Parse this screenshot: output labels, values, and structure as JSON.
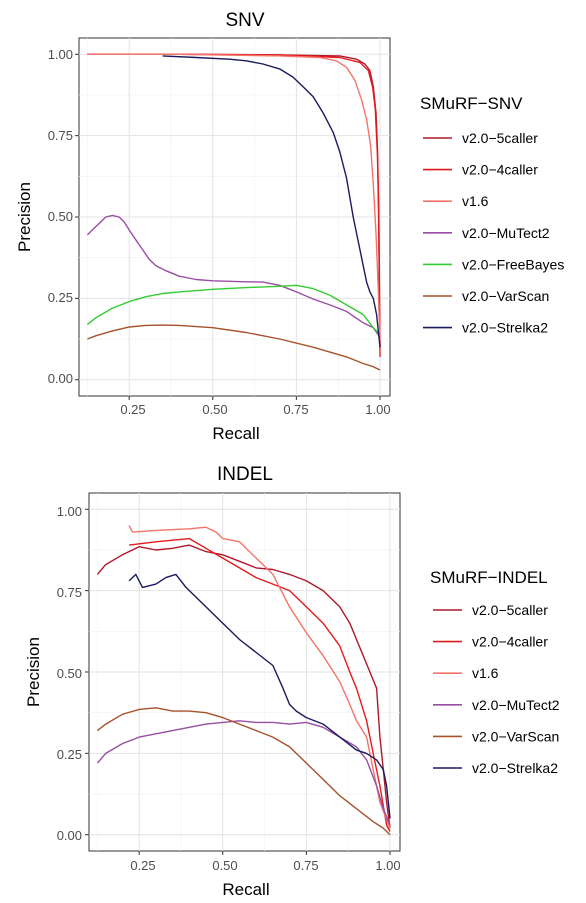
{
  "chart_data": [
    {
      "type": "line",
      "title": "SNV",
      "xlabel": "Recall",
      "ylabel": "Precision",
      "xlim": [
        0.1,
        1.03
      ],
      "ylim": [
        -0.05,
        1.05
      ],
      "xticks": [
        "0.25",
        "0.50",
        "0.75",
        "1.00"
      ],
      "yticks": [
        "0.00",
        "0.25",
        "0.50",
        "0.75",
        "1.00"
      ],
      "grid": true,
      "legend_title": "SMuRF−SNV",
      "legend_position": "right",
      "series": [
        {
          "name": "v2.0−5caller",
          "color": "#b2182b",
          "points": [
            [
              0.125,
              1.0
            ],
            [
              0.4,
              1.0
            ],
            [
              0.7,
              0.998
            ],
            [
              0.88,
              0.995
            ],
            [
              0.93,
              0.985
            ],
            [
              0.955,
              0.97
            ],
            [
              0.97,
              0.95
            ],
            [
              0.98,
              0.9
            ],
            [
              0.988,
              0.82
            ],
            [
              0.993,
              0.7
            ],
            [
              0.996,
              0.5
            ],
            [
              0.998,
              0.3
            ],
            [
              1.0,
              0.1
            ]
          ]
        },
        {
          "name": "v2.0−4caller",
          "color": "#e41a1c",
          "points": [
            [
              0.125,
              1.0
            ],
            [
              0.4,
              1.0
            ],
            [
              0.7,
              0.998
            ],
            [
              0.88,
              0.99
            ],
            [
              0.94,
              0.975
            ],
            [
              0.965,
              0.95
            ],
            [
              0.978,
              0.9
            ],
            [
              0.986,
              0.83
            ],
            [
              0.992,
              0.7
            ],
            [
              0.996,
              0.55
            ],
            [
              0.998,
              0.35
            ],
            [
              0.999,
              0.2
            ],
            [
              1.0,
              0.07
            ]
          ]
        },
        {
          "name": "v1.6",
          "color": "#f4736b",
          "points": [
            [
              0.125,
              1.0
            ],
            [
              0.4,
              1.0
            ],
            [
              0.7,
              0.995
            ],
            [
              0.82,
              0.99
            ],
            [
              0.87,
              0.98
            ],
            [
              0.9,
              0.96
            ],
            [
              0.925,
              0.92
            ],
            [
              0.945,
              0.86
            ],
            [
              0.96,
              0.8
            ],
            [
              0.972,
              0.72
            ],
            [
              0.98,
              0.6
            ],
            [
              0.988,
              0.45
            ],
            [
              0.994,
              0.3
            ],
            [
              1.0,
              0.12
            ]
          ]
        },
        {
          "name": "v2.0−MuTect2",
          "color": "#984ea3",
          "points": [
            [
              0.125,
              0.445
            ],
            [
              0.15,
              0.47
            ],
            [
              0.18,
              0.5
            ],
            [
              0.2,
              0.505
            ],
            [
              0.22,
              0.5
            ],
            [
              0.235,
              0.485
            ],
            [
              0.25,
              0.46
            ],
            [
              0.27,
              0.43
            ],
            [
              0.29,
              0.4
            ],
            [
              0.31,
              0.37
            ],
            [
              0.33,
              0.35
            ],
            [
              0.36,
              0.335
            ],
            [
              0.4,
              0.318
            ],
            [
              0.45,
              0.308
            ],
            [
              0.5,
              0.304
            ],
            [
              0.6,
              0.301
            ],
            [
              0.65,
              0.3
            ],
            [
              0.7,
              0.29
            ],
            [
              0.75,
              0.27
            ],
            [
              0.8,
              0.248
            ],
            [
              0.85,
              0.23
            ],
            [
              0.9,
              0.21
            ],
            [
              0.95,
              0.175
            ],
            [
              0.98,
              0.16
            ],
            [
              1.0,
              0.13
            ]
          ]
        },
        {
          "name": "v2.0−FreeBayes",
          "color": "#33cc33",
          "points": [
            [
              0.125,
              0.17
            ],
            [
              0.15,
              0.19
            ],
            [
              0.2,
              0.22
            ],
            [
              0.25,
              0.24
            ],
            [
              0.3,
              0.255
            ],
            [
              0.35,
              0.265
            ],
            [
              0.4,
              0.27
            ],
            [
              0.5,
              0.278
            ],
            [
              0.6,
              0.283
            ],
            [
              0.7,
              0.287
            ],
            [
              0.75,
              0.29
            ],
            [
              0.8,
              0.28
            ],
            [
              0.85,
              0.26
            ],
            [
              0.9,
              0.23
            ],
            [
              0.95,
              0.2
            ],
            [
              0.98,
              0.16
            ],
            [
              1.0,
              0.14
            ]
          ]
        },
        {
          "name": "v2.0−VarScan",
          "color": "#a6522b",
          "points": [
            [
              0.125,
              0.125
            ],
            [
              0.15,
              0.135
            ],
            [
              0.2,
              0.15
            ],
            [
              0.25,
              0.162
            ],
            [
              0.3,
              0.167
            ],
            [
              0.35,
              0.168
            ],
            [
              0.4,
              0.167
            ],
            [
              0.5,
              0.16
            ],
            [
              0.6,
              0.145
            ],
            [
              0.7,
              0.125
            ],
            [
              0.8,
              0.1
            ],
            [
              0.85,
              0.085
            ],
            [
              0.9,
              0.07
            ],
            [
              0.95,
              0.05
            ],
            [
              0.98,
              0.04
            ],
            [
              1.0,
              0.03
            ]
          ]
        },
        {
          "name": "v2.0−Strelka2",
          "color": "#1a1a5e",
          "points": [
            [
              0.35,
              0.995
            ],
            [
              0.45,
              0.99
            ],
            [
              0.55,
              0.985
            ],
            [
              0.6,
              0.98
            ],
            [
              0.65,
              0.97
            ],
            [
              0.7,
              0.955
            ],
            [
              0.74,
              0.93
            ],
            [
              0.77,
              0.9
            ],
            [
              0.8,
              0.87
            ],
            [
              0.83,
              0.82
            ],
            [
              0.86,
              0.76
            ],
            [
              0.88,
              0.7
            ],
            [
              0.9,
              0.62
            ],
            [
              0.92,
              0.5
            ],
            [
              0.94,
              0.4
            ],
            [
              0.96,
              0.3
            ],
            [
              0.97,
              0.27
            ],
            [
              0.98,
              0.25
            ],
            [
              0.99,
              0.2
            ],
            [
              1.0,
              0.1
            ]
          ]
        }
      ]
    },
    {
      "type": "line",
      "title": "INDEL",
      "xlabel": "Recall",
      "ylabel": "Precision",
      "xlim": [
        0.1,
        1.03
      ],
      "ylim": [
        -0.05,
        1.05
      ],
      "xticks": [
        "0.25",
        "0.50",
        "0.75",
        "1.00"
      ],
      "yticks": [
        "0.00",
        "0.25",
        "0.50",
        "0.75",
        "1.00"
      ],
      "grid": true,
      "legend_title": "SMuRF−INDEL",
      "legend_position": "right",
      "series": [
        {
          "name": "v2.0−5caller",
          "color": "#b2182b",
          "points": [
            [
              0.125,
              0.8
            ],
            [
              0.15,
              0.83
            ],
            [
              0.2,
              0.86
            ],
            [
              0.25,
              0.885
            ],
            [
              0.3,
              0.875
            ],
            [
              0.35,
              0.88
            ],
            [
              0.4,
              0.89
            ],
            [
              0.45,
              0.87
            ],
            [
              0.5,
              0.86
            ],
            [
              0.55,
              0.84
            ],
            [
              0.6,
              0.82
            ],
            [
              0.65,
              0.815
            ],
            [
              0.7,
              0.8
            ],
            [
              0.75,
              0.78
            ],
            [
              0.8,
              0.75
            ],
            [
              0.85,
              0.7
            ],
            [
              0.88,
              0.65
            ],
            [
              0.9,
              0.6
            ],
            [
              0.92,
              0.55
            ],
            [
              0.94,
              0.5
            ],
            [
              0.96,
              0.45
            ],
            [
              0.97,
              0.3
            ],
            [
              0.98,
              0.2
            ],
            [
              0.99,
              0.1
            ],
            [
              1.0,
              0.02
            ]
          ]
        },
        {
          "name": "v2.0−4caller",
          "color": "#e41a1c",
          "points": [
            [
              0.22,
              0.89
            ],
            [
              0.3,
              0.9
            ],
            [
              0.4,
              0.91
            ],
            [
              0.45,
              0.88
            ],
            [
              0.5,
              0.85
            ],
            [
              0.55,
              0.82
            ],
            [
              0.6,
              0.79
            ],
            [
              0.65,
              0.77
            ],
            [
              0.7,
              0.75
            ],
            [
              0.75,
              0.7
            ],
            [
              0.8,
              0.65
            ],
            [
              0.85,
              0.58
            ],
            [
              0.88,
              0.5
            ],
            [
              0.9,
              0.45
            ],
            [
              0.93,
              0.35
            ],
            [
              0.95,
              0.25
            ],
            [
              0.97,
              0.15
            ],
            [
              0.99,
              0.03
            ],
            [
              1.0,
              0.01
            ]
          ]
        },
        {
          "name": "v1.6",
          "color": "#f4736b",
          "points": [
            [
              0.22,
              0.95
            ],
            [
              0.23,
              0.93
            ],
            [
              0.3,
              0.935
            ],
            [
              0.4,
              0.94
            ],
            [
              0.45,
              0.945
            ],
            [
              0.48,
              0.93
            ],
            [
              0.5,
              0.91
            ],
            [
              0.55,
              0.9
            ],
            [
              0.6,
              0.85
            ],
            [
              0.65,
              0.8
            ],
            [
              0.7,
              0.7
            ],
            [
              0.75,
              0.62
            ],
            [
              0.8,
              0.55
            ],
            [
              0.85,
              0.47
            ],
            [
              0.88,
              0.4
            ],
            [
              0.9,
              0.35
            ],
            [
              0.93,
              0.3
            ],
            [
              0.95,
              0.2
            ],
            [
              0.97,
              0.1
            ],
            [
              1.0,
              0.02
            ]
          ]
        },
        {
          "name": "v2.0−MuTect2",
          "color": "#984ea3",
          "points": [
            [
              0.125,
              0.22
            ],
            [
              0.15,
              0.25
            ],
            [
              0.2,
              0.28
            ],
            [
              0.25,
              0.3
            ],
            [
              0.3,
              0.31
            ],
            [
              0.35,
              0.32
            ],
            [
              0.4,
              0.33
            ],
            [
              0.45,
              0.34
            ],
            [
              0.5,
              0.345
            ],
            [
              0.55,
              0.35
            ],
            [
              0.6,
              0.345
            ],
            [
              0.65,
              0.345
            ],
            [
              0.7,
              0.34
            ],
            [
              0.75,
              0.345
            ],
            [
              0.8,
              0.33
            ],
            [
              0.85,
              0.3
            ],
            [
              0.9,
              0.27
            ],
            [
              0.93,
              0.23
            ],
            [
              0.96,
              0.15
            ],
            [
              0.98,
              0.08
            ],
            [
              1.0,
              0.03
            ]
          ]
        },
        {
          "name": "v2.0−VarScan",
          "color": "#a6522b",
          "points": [
            [
              0.125,
              0.32
            ],
            [
              0.15,
              0.34
            ],
            [
              0.2,
              0.37
            ],
            [
              0.25,
              0.385
            ],
            [
              0.3,
              0.39
            ],
            [
              0.35,
              0.38
            ],
            [
              0.4,
              0.38
            ],
            [
              0.45,
              0.375
            ],
            [
              0.5,
              0.36
            ],
            [
              0.55,
              0.34
            ],
            [
              0.6,
              0.32
            ],
            [
              0.65,
              0.3
            ],
            [
              0.7,
              0.27
            ],
            [
              0.75,
              0.22
            ],
            [
              0.8,
              0.17
            ],
            [
              0.85,
              0.12
            ],
            [
              0.9,
              0.08
            ],
            [
              0.95,
              0.04
            ],
            [
              0.98,
              0.02
            ],
            [
              1.0,
              0.0
            ]
          ]
        },
        {
          "name": "v2.0−Strelka2",
          "color": "#1a1a5e",
          "points": [
            [
              0.22,
              0.78
            ],
            [
              0.24,
              0.8
            ],
            [
              0.26,
              0.76
            ],
            [
              0.3,
              0.77
            ],
            [
              0.33,
              0.79
            ],
            [
              0.36,
              0.8
            ],
            [
              0.39,
              0.76
            ],
            [
              0.42,
              0.73
            ],
            [
              0.45,
              0.7
            ],
            [
              0.5,
              0.65
            ],
            [
              0.55,
              0.6
            ],
            [
              0.6,
              0.56
            ],
            [
              0.65,
              0.52
            ],
            [
              0.68,
              0.45
            ],
            [
              0.7,
              0.4
            ],
            [
              0.72,
              0.38
            ],
            [
              0.75,
              0.36
            ],
            [
              0.8,
              0.34
            ],
            [
              0.85,
              0.3
            ],
            [
              0.9,
              0.26
            ],
            [
              0.93,
              0.25
            ],
            [
              0.96,
              0.23
            ],
            [
              0.98,
              0.2
            ],
            [
              0.99,
              0.15
            ],
            [
              1.0,
              0.05
            ]
          ]
        }
      ]
    }
  ]
}
